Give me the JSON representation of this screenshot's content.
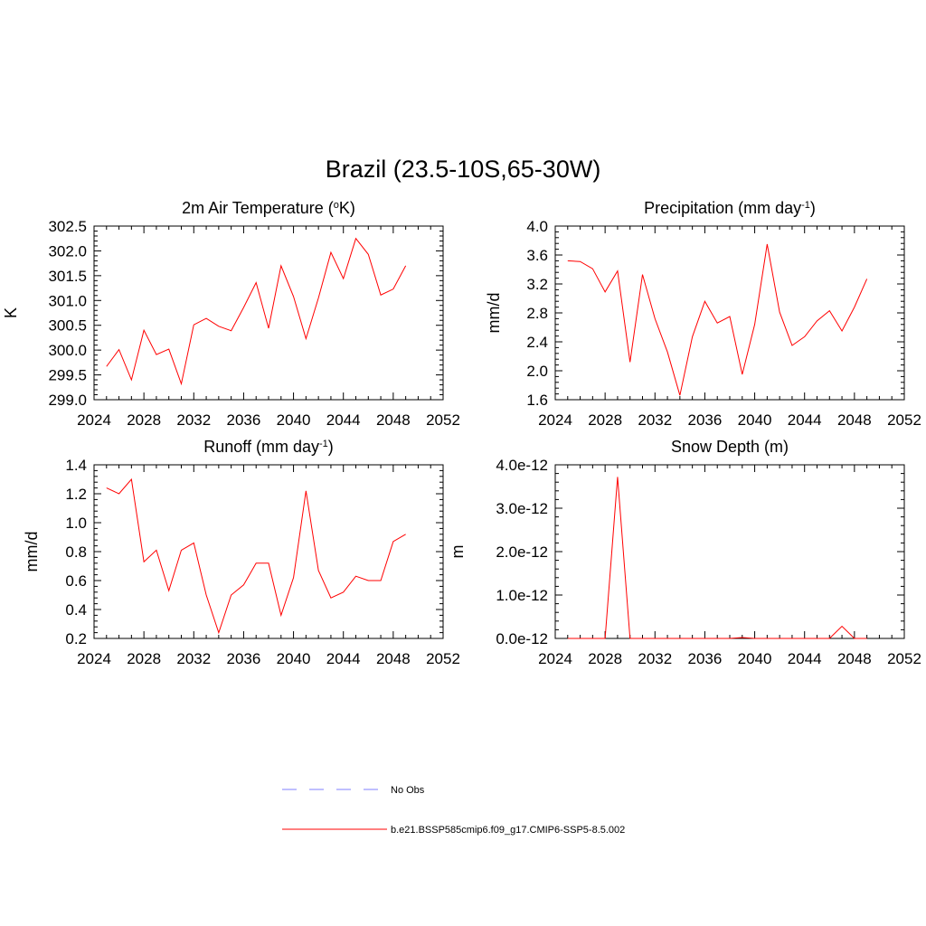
{
  "title": "Brazil (23.5-10S,65-30W)",
  "colors": {
    "series": "#ff0000",
    "obs": "#9999ff",
    "axis": "#000000"
  },
  "legend": {
    "placement": "bottom-center",
    "entries": [
      {
        "label": "No Obs",
        "style": "dashed",
        "color": "#9999ff"
      },
      {
        "label": "b.e21.BSSP585cmip6.f09_g17.CMIP6-SSP5-8.5.002",
        "style": "solid",
        "color": "#ff0000"
      }
    ]
  },
  "chart_data": [
    {
      "type": "line",
      "title": "2m Air Temperature (",
      "title_sup": "o",
      "title_end": "K)",
      "ylabel": "K",
      "xlim": [
        2024,
        2052
      ],
      "ylim": [
        299.0,
        302.5
      ],
      "xticks": [
        2024,
        2028,
        2032,
        2036,
        2040,
        2044,
        2048,
        2052
      ],
      "yticks": [
        299.0,
        299.5,
        300.0,
        300.5,
        301.0,
        301.5,
        302.0,
        302.5
      ],
      "ytick_labels": [
        "299.0",
        "299.5",
        "300.0",
        "300.5",
        "301.0",
        "301.5",
        "302.0",
        "302.5"
      ],
      "x": [
        2025,
        2026,
        2027,
        2028,
        2029,
        2030,
        2031,
        2032,
        2033,
        2034,
        2035,
        2036,
        2037,
        2038,
        2039,
        2040,
        2041,
        2042,
        2043,
        2044,
        2045,
        2046,
        2047,
        2048,
        2049
      ],
      "values": [
        299.67,
        300.01,
        299.4,
        300.4,
        299.91,
        300.02,
        299.32,
        300.51,
        300.64,
        300.48,
        300.39,
        300.86,
        301.36,
        300.44,
        301.7,
        301.08,
        300.23,
        301.05,
        301.97,
        301.44,
        302.25,
        301.93,
        301.11,
        301.23,
        301.7
      ]
    },
    {
      "type": "line",
      "title": "Precipitation (mm day",
      "title_sup": "-1",
      "title_end": ")",
      "ylabel": "mm/d",
      "xlim": [
        2024,
        2052
      ],
      "ylim": [
        1.6,
        4.0
      ],
      "xticks": [
        2024,
        2028,
        2032,
        2036,
        2040,
        2044,
        2048,
        2052
      ],
      "yticks": [
        1.6,
        2.0,
        2.4,
        2.8,
        3.2,
        3.6,
        4.0
      ],
      "ytick_labels": [
        "1.6",
        "2.0",
        "2.4",
        "2.8",
        "3.2",
        "3.6",
        "4.0"
      ],
      "x": [
        2025,
        2026,
        2027,
        2028,
        2029,
        2030,
        2031,
        2032,
        2033,
        2034,
        2035,
        2036,
        2037,
        2038,
        2039,
        2040,
        2041,
        2042,
        2043,
        2044,
        2045,
        2046,
        2047,
        2048,
        2049
      ],
      "values": [
        3.52,
        3.51,
        3.41,
        3.09,
        3.38,
        2.12,
        3.33,
        2.72,
        2.26,
        1.66,
        2.47,
        2.96,
        2.66,
        2.75,
        1.95,
        2.64,
        3.75,
        2.81,
        2.35,
        2.47,
        2.69,
        2.83,
        2.55,
        2.88,
        3.27
      ]
    },
    {
      "type": "line",
      "title": "Runoff (mm day",
      "title_sup": "-1",
      "title_end": ")",
      "ylabel": "mm/d",
      "xlim": [
        2024,
        2052
      ],
      "ylim": [
        0.2,
        1.4
      ],
      "xticks": [
        2024,
        2028,
        2032,
        2036,
        2040,
        2044,
        2048,
        2052
      ],
      "yticks": [
        0.2,
        0.4,
        0.6,
        0.8,
        1.0,
        1.2,
        1.4
      ],
      "ytick_labels": [
        "0.2",
        "0.4",
        "0.6",
        "0.8",
        "1.0",
        "1.2",
        "1.4"
      ],
      "x": [
        2025,
        2026,
        2027,
        2028,
        2029,
        2030,
        2031,
        2032,
        2033,
        2034,
        2035,
        2036,
        2037,
        2038,
        2039,
        2040,
        2041,
        2042,
        2043,
        2044,
        2045,
        2046,
        2047,
        2048,
        2049
      ],
      "values": [
        1.24,
        1.2,
        1.3,
        0.73,
        0.81,
        0.53,
        0.81,
        0.86,
        0.5,
        0.24,
        0.5,
        0.57,
        0.72,
        0.72,
        0.36,
        0.62,
        1.22,
        0.67,
        0.48,
        0.52,
        0.63,
        0.6,
        0.6,
        0.87,
        0.92
      ]
    },
    {
      "type": "line",
      "title": "Snow Depth (m)",
      "title_sup": "",
      "title_end": "",
      "ylabel": "m",
      "xlim": [
        2024,
        2052
      ],
      "ylim": [
        0,
        4e-12
      ],
      "xticks": [
        2024,
        2028,
        2032,
        2036,
        2040,
        2044,
        2048,
        2052
      ],
      "yticks": [
        0,
        1e-12,
        2e-12,
        3e-12,
        4e-12
      ],
      "ytick_labels": [
        "0.0e-12",
        "1.0e-12",
        "2.0e-12",
        "3.0e-12",
        "4.0e-12"
      ],
      "x": [
        2025,
        2026,
        2027,
        2028,
        2029,
        2030,
        2031,
        2032,
        2033,
        2034,
        2035,
        2036,
        2037,
        2038,
        2039,
        2040,
        2041,
        2042,
        2043,
        2044,
        2045,
        2046,
        2047,
        2048,
        2049
      ],
      "values": [
        0,
        0,
        0,
        0,
        3.72e-12,
        0,
        0,
        0,
        0,
        0,
        0,
        0,
        0,
        0,
        2e-14,
        0,
        0,
        0,
        0,
        0,
        0,
        0,
        2.8e-13,
        0,
        0
      ]
    }
  ]
}
